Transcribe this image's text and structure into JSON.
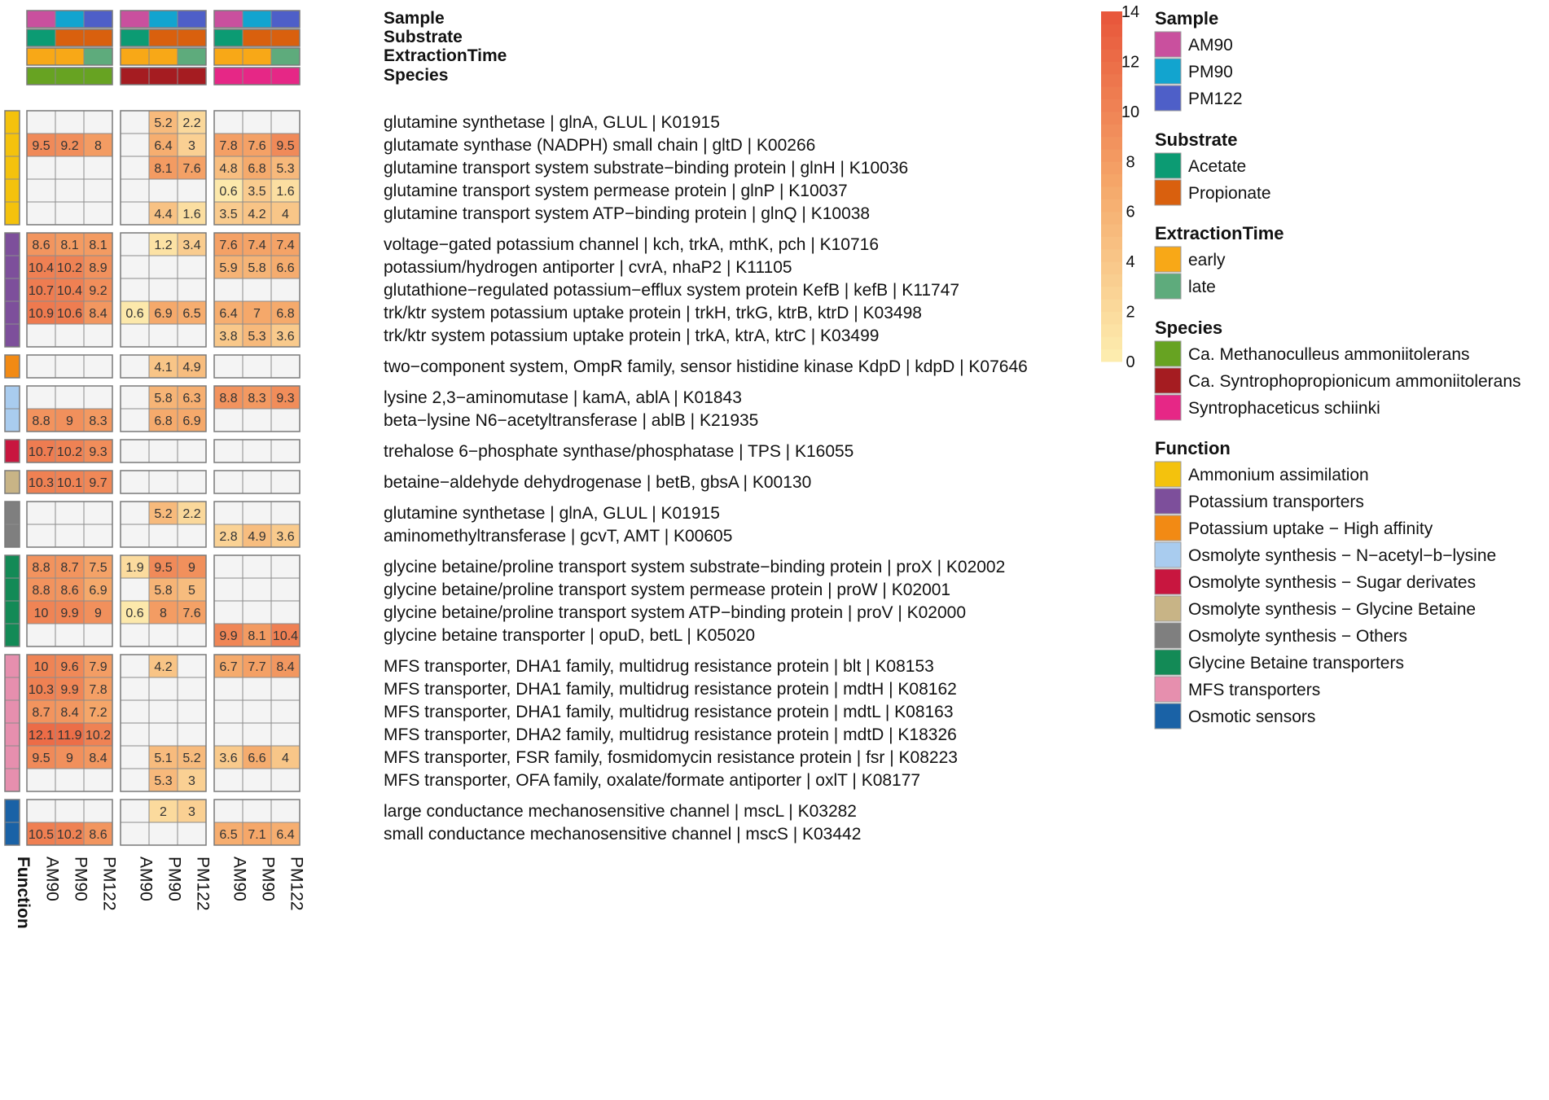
{
  "chart_data": {
    "type": "heatmap",
    "color_scale": {
      "min": 0,
      "max": 14,
      "ticks": [
        0,
        2,
        4,
        6,
        8,
        10,
        12,
        14
      ],
      "low_color": "#fdeeb1",
      "mid_color": "#f5a86a",
      "high_color": "#e8553a",
      "na_color": "#f4f4f4"
    },
    "groups": [
      {
        "species": "Ca. Methanoculleus ammoniitolerans",
        "columns": [
          "AM90",
          "PM90",
          "PM122"
        ]
      },
      {
        "species": "Ca. Syntrophopropionicum ammoniitolerans",
        "columns": [
          "AM90",
          "PM90",
          "PM122"
        ]
      },
      {
        "species": "Syntrophaceticus schiinki",
        "columns": [
          "AM90",
          "PM90",
          "PM122"
        ]
      }
    ],
    "column_annotations": {
      "Sample": [
        "AM90",
        "PM90",
        "PM122",
        "AM90",
        "PM90",
        "PM122",
        "AM90",
        "PM90",
        "PM122"
      ],
      "Substrate": [
        "Acetate",
        "Propionate",
        "Propionate",
        "Acetate",
        "Propionate",
        "Propionate",
        "Acetate",
        "Propionate",
        "Propionate"
      ],
      "ExtractionTime": [
        "early",
        "early",
        "late",
        "early",
        "early",
        "late",
        "early",
        "early",
        "late"
      ],
      "Species": [
        "Ca. Methanoculleus ammoniitolerans",
        "Ca. Methanoculleus ammoniitolerans",
        "Ca. Methanoculleus ammoniitolerans",
        "Ca. Syntrophopropionicum ammoniitolerans",
        "Ca. Syntrophopropionicum ammoniitolerans",
        "Ca. Syntrophopropionicum ammoniitolerans",
        "Syntrophaceticus schiinki",
        "Syntrophaceticus schiinki",
        "Syntrophaceticus schiinki"
      ]
    },
    "annotation_titles": [
      "Sample",
      "Substrate",
      "ExtractionTime",
      "Species"
    ],
    "function_axis_label": "Function",
    "row_groups": [
      {
        "function": "Ammonium assimilation",
        "rows": [
          {
            "label": "glutamine synthetase | glnA, GLUL | K01915",
            "values": [
              null,
              null,
              null,
              null,
              5.2,
              2.2,
              null,
              null,
              null
            ]
          },
          {
            "label": "glutamate synthase (NADPH) small chain | gltD | K00266",
            "values": [
              9.5,
              9.2,
              8,
              null,
              6.4,
              3,
              7.8,
              7.6,
              9.5
            ]
          },
          {
            "label": "glutamine transport system substrate−binding protein | glnH | K10036",
            "values": [
              null,
              null,
              null,
              null,
              8.1,
              7.6,
              4.8,
              6.8,
              5.3
            ]
          },
          {
            "label": "glutamine transport system permease protein | glnP | K10037",
            "values": [
              null,
              null,
              null,
              null,
              null,
              null,
              0.6,
              3.5,
              1.6
            ]
          },
          {
            "label": "glutamine transport system ATP−binding protein | glnQ | K10038",
            "values": [
              null,
              null,
              null,
              null,
              4.4,
              1.6,
              3.5,
              4.2,
              4
            ]
          }
        ]
      },
      {
        "function": "Potassium transporters",
        "rows": [
          {
            "label": "voltage−gated potassium channel | kch, trkA, mthK, pch | K10716",
            "values": [
              8.6,
              8.1,
              8.1,
              null,
              1.2,
              3.4,
              7.6,
              7.4,
              7.4
            ]
          },
          {
            "label": "potassium/hydrogen antiporter | cvrA, nhaP2 | K11105",
            "values": [
              10.4,
              10.2,
              8.9,
              null,
              null,
              null,
              5.9,
              5.8,
              6.6
            ]
          },
          {
            "label": "glutathione−regulated potassium−efflux system protein KefB | kefB | K11747",
            "values": [
              10.7,
              10.4,
              9.2,
              null,
              null,
              null,
              null,
              null,
              null
            ]
          },
          {
            "label": "trk/ktr system potassium uptake protein | trkH, trkG, ktrB, ktrD | K03498",
            "values": [
              10.9,
              10.6,
              8.4,
              0.6,
              6.9,
              6.5,
              6.4,
              7,
              6.8
            ]
          },
          {
            "label": "trk/ktr system potassium uptake protein | trkA, ktrA, ktrC | K03499",
            "values": [
              null,
              null,
              null,
              null,
              null,
              null,
              3.8,
              5.3,
              3.6
            ]
          }
        ]
      },
      {
        "function": "Potassium uptake − High affinity",
        "rows": [
          {
            "label": "two−component system, OmpR family, sensor histidine kinase KdpD | kdpD | K07646",
            "values": [
              null,
              null,
              null,
              null,
              4.1,
              4.9,
              null,
              null,
              null
            ]
          }
        ]
      },
      {
        "function": "Osmolyte synthesis − N-acetyl-b-lysine",
        "rows": [
          {
            "label": "lysine 2,3−aminomutase | kamA, ablA | K01843",
            "values": [
              null,
              null,
              null,
              null,
              5.8,
              6.3,
              8.8,
              8.3,
              9.3
            ]
          },
          {
            "label": "beta−lysine N6−acetyltransferase | ablB | K21935",
            "values": [
              8.8,
              9,
              8.3,
              null,
              6.8,
              6.9,
              null,
              null,
              null
            ]
          }
        ]
      },
      {
        "function": "Osmolyte synthesis − Sugar derivates",
        "rows": [
          {
            "label": "trehalose 6−phosphate synthase/phosphatase | TPS | K16055",
            "values": [
              10.7,
              10.2,
              9.3,
              null,
              null,
              null,
              null,
              null,
              null
            ]
          }
        ]
      },
      {
        "function": "Osmolyte synthesis − Glycine Betaine",
        "rows": [
          {
            "label": "betaine−aldehyde dehydrogenase | betB, gbsA | K00130",
            "values": [
              10.3,
              10.1,
              9.7,
              null,
              null,
              null,
              null,
              null,
              null
            ]
          }
        ]
      },
      {
        "function": "Osmolyte synthesis − Others",
        "rows": [
          {
            "label": "glutamine synthetase | glnA, GLUL | K01915",
            "values": [
              null,
              null,
              null,
              null,
              5.2,
              2.2,
              null,
              null,
              null
            ]
          },
          {
            "label": "aminomethyltransferase | gcvT, AMT | K00605",
            "values": [
              null,
              null,
              null,
              null,
              null,
              null,
              2.8,
              4.9,
              3.6
            ]
          }
        ]
      },
      {
        "function": "Glycine Betaine transporters",
        "rows": [
          {
            "label": "glycine betaine/proline transport system substrate−binding protein | proX | K02002",
            "values": [
              8.8,
              8.7,
              7.5,
              1.9,
              9.5,
              9,
              null,
              null,
              null
            ]
          },
          {
            "label": "glycine betaine/proline transport system permease protein | proW | K02001",
            "values": [
              8.8,
              8.6,
              6.9,
              null,
              5.8,
              5,
              null,
              null,
              null
            ]
          },
          {
            "label": "glycine betaine/proline transport system ATP−binding protein | proV | K02000",
            "values": [
              10,
              9.9,
              9,
              0.6,
              8,
              7.6,
              null,
              null,
              null
            ]
          },
          {
            "label": "glycine betaine transporter | opuD, betL | K05020",
            "values": [
              null,
              null,
              null,
              null,
              null,
              null,
              9.9,
              8.1,
              10.4
            ]
          }
        ]
      },
      {
        "function": "MFS transporters",
        "rows": [
          {
            "label": "MFS transporter, DHA1 family, multidrug resistance protein | blt | K08153",
            "values": [
              10,
              9.6,
              7.9,
              null,
              4.2,
              null,
              6.7,
              7.7,
              8.4
            ]
          },
          {
            "label": "MFS transporter, DHA1 family, multidrug resistance protein | mdtH | K08162",
            "values": [
              10.3,
              9.9,
              7.8,
              null,
              null,
              null,
              null,
              null,
              null
            ]
          },
          {
            "label": "MFS transporter, DHA1 family, multidrug resistance protein | mdtL | K08163",
            "values": [
              8.7,
              8.4,
              7.2,
              null,
              null,
              null,
              null,
              null,
              null
            ]
          },
          {
            "label": "MFS transporter, DHA2 family, multidrug resistance protein | mdtD | K18326",
            "values": [
              12.1,
              11.9,
              10.2,
              null,
              null,
              null,
              null,
              null,
              null
            ]
          },
          {
            "label": "MFS transporter, FSR family, fosmidomycin resistance protein | fsr | K08223",
            "values": [
              9.5,
              9,
              8.4,
              null,
              5.1,
              5.2,
              3.6,
              6.6,
              4
            ]
          },
          {
            "label": "MFS transporter, OFA family, oxalate/formate antiporter | oxlT | K08177",
            "values": [
              null,
              null,
              null,
              null,
              5.3,
              3,
              null,
              null,
              null
            ]
          }
        ]
      },
      {
        "function": "Osmotic sensors",
        "rows": [
          {
            "label": "large conductance mechanosensitive channel | mscL | K03282",
            "values": [
              null,
              null,
              null,
              null,
              2,
              3,
              null,
              null,
              null
            ]
          },
          {
            "label": "small conductance mechanosensitive channel | mscS | K03442",
            "values": [
              10.5,
              10.2,
              8.6,
              null,
              null,
              null,
              6.5,
              7.1,
              6.4
            ]
          }
        ]
      }
    ],
    "legends": [
      {
        "title": "Sample",
        "items": [
          {
            "label": "AM90",
            "color": "#c9509e"
          },
          {
            "label": "PM90",
            "color": "#12a4cf"
          },
          {
            "label": "PM122",
            "color": "#4e5fc8"
          }
        ]
      },
      {
        "title": "Substrate",
        "items": [
          {
            "label": "Acetate",
            "color": "#0c9b73"
          },
          {
            "label": "Propionate",
            "color": "#d9600e"
          }
        ]
      },
      {
        "title": "ExtractionTime",
        "items": [
          {
            "label": "early",
            "color": "#f8a817"
          },
          {
            "label": "late",
            "color": "#5eab7c"
          }
        ]
      },
      {
        "title": "Species",
        "items": [
          {
            "label": "Ca. Methanoculleus ammoniitolerans",
            "color": "#67a322"
          },
          {
            "label": "Ca. Syntrophopropionicum ammoniitolerans",
            "color": "#a51c21"
          },
          {
            "label": "Syntrophaceticus schiinki",
            "color": "#e62786"
          }
        ]
      },
      {
        "title": "Function",
        "items": [
          {
            "label": "Ammonium assimilation",
            "color": "#f4c20d"
          },
          {
            "label": "Potassium transporters",
            "color": "#7d4f9b"
          },
          {
            "label": "Potassium uptake −  High affinity",
            "color": "#f28a14"
          },
          {
            "label": "Osmolyte synthesis − N−acetyl−b−lysine",
            "color": "#a9ccef"
          },
          {
            "label": "Osmolyte synthesis − Sugar derivates",
            "color": "#c8163f"
          },
          {
            "label": "Osmolyte synthesis  − Glycine Betaine",
            "color": "#c8b486"
          },
          {
            "label": "Osmolyte synthesis  − Others",
            "color": "#7f7f7f"
          },
          {
            "label": "Glycine Betaine transporters",
            "color": "#138a56"
          },
          {
            "label": "MFS transporters",
            "color": "#e68fae"
          },
          {
            "label": "Osmotic sensors",
            "color": "#1a62a6"
          }
        ]
      }
    ]
  }
}
